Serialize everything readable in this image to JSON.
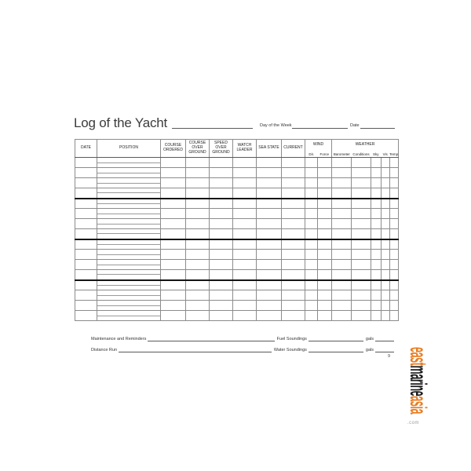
{
  "header": {
    "title": "Log of the Yacht",
    "day_of_week_label": "Day of the Week",
    "date_label": "Date"
  },
  "table": {
    "columns": [
      "DATE",
      "POSITION",
      "COURSE ORDERED",
      "COURSE OVER GROUND",
      "SPEED OVER GROUND",
      "WATCH LEADER",
      "SEA STATE",
      "CURRENT"
    ],
    "wind_group": {
      "label": "WIND",
      "sub": [
        "Dir.",
        "Force"
      ]
    },
    "weather_group": {
      "label": "WEATHER",
      "sub": [
        "Barometer",
        "Conditions",
        "Sky",
        "Vis",
        "Temp"
      ]
    },
    "blocks": 4,
    "rows_per_block": 4,
    "cells_per_row": 15
  },
  "footer": {
    "maintenance_label": "Maintenance and Reminders",
    "fuel_label": "Fuel Soundings",
    "distance_label": "Distance Run",
    "water_label": "Water Soundings",
    "gals_label": "gals",
    "page_number": "9"
  },
  "watermark": {
    "east": "east",
    "marine": "marine",
    "asia": "asia",
    "tld": ".com",
    "orange": "#E87E23",
    "black": "#1A1A1A",
    "gray": "#9A9A9A"
  }
}
